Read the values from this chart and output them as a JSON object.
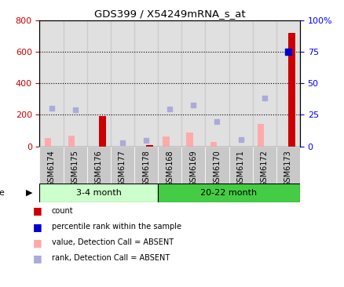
{
  "title": "GDS399 / X54249mRNA_s_at",
  "samples": [
    "GSM6174",
    "GSM6175",
    "GSM6176",
    "GSM6177",
    "GSM6178",
    "GSM6168",
    "GSM6169",
    "GSM6170",
    "GSM6171",
    "GSM6172",
    "GSM6173"
  ],
  "count_values": [
    null,
    null,
    190,
    null,
    10,
    null,
    null,
    null,
    null,
    null,
    720
  ],
  "rank_values_pct": [
    null,
    null,
    null,
    null,
    null,
    null,
    null,
    null,
    null,
    null,
    75
  ],
  "absent_value": [
    55,
    70,
    null,
    null,
    null,
    65,
    90,
    30,
    null,
    140,
    null
  ],
  "absent_rank_pct": [
    30,
    29,
    null,
    3,
    5,
    29,
    33,
    19,
    6,
    38,
    null
  ],
  "group1_label": "3-4 month",
  "group2_label": "20-22 month",
  "group1_indices": [
    0,
    1,
    2,
    3,
    4
  ],
  "group2_indices": [
    5,
    6,
    7,
    8,
    9,
    10
  ],
  "ylim_left": [
    0,
    800
  ],
  "ylim_right": [
    0,
    100
  ],
  "yticks_left": [
    0,
    200,
    400,
    600,
    800
  ],
  "yticks_right": [
    0,
    25,
    50,
    75,
    100
  ],
  "ytick_labels_right": [
    "0",
    "25",
    "50",
    "75",
    "100%"
  ],
  "color_count": "#cc0000",
  "color_rank_present": "#0000cc",
  "color_absent_value": "#ffaaaa",
  "color_absent_rank": "#aaaadd",
  "color_group1_bg": "#ccffcc",
  "color_group2_bg": "#44cc44",
  "color_sample_bg": "#c8c8c8",
  "bar_width": 0.28,
  "absent_rank_raw": [
    240,
    230,
    null,
    25,
    40,
    235,
    260,
    155,
    45,
    305,
    null
  ],
  "rank_raw": [
    null,
    null,
    null,
    null,
    null,
    null,
    null,
    null,
    null,
    null,
    600
  ]
}
